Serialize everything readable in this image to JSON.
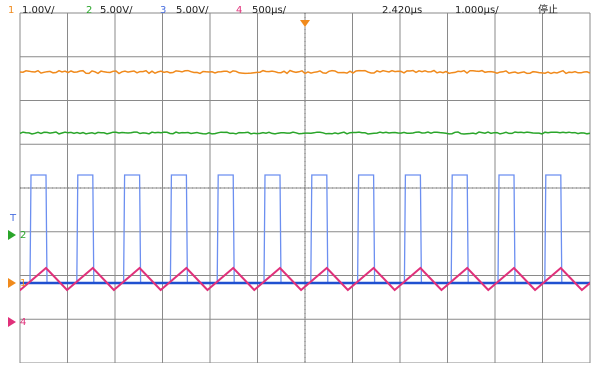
{
  "header": {
    "channels": [
      {
        "number": "1",
        "scale": "1.00V/"
      },
      {
        "number": "2",
        "scale": "5.00V/"
      },
      {
        "number": "3",
        "scale": "5.00V/"
      },
      {
        "number": "4",
        "scale": "500µs/"
      }
    ],
    "trigger_time": "2.420µs",
    "time_scale": "1.000µs/",
    "status": "停止"
  },
  "markers": [
    "T",
    "2",
    "1",
    "4"
  ]
}
